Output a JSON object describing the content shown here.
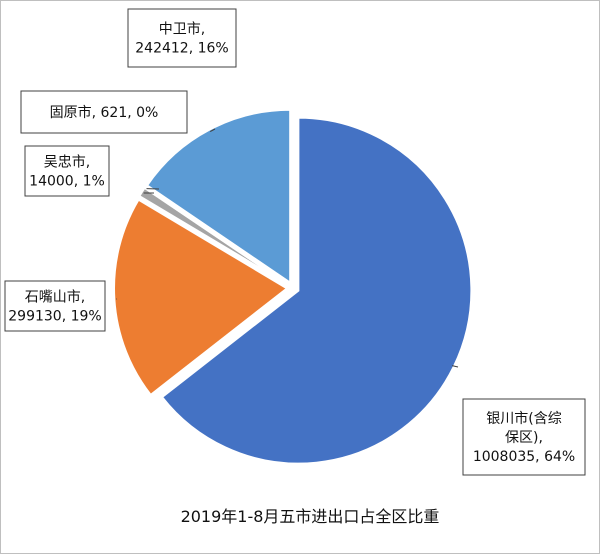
{
  "chart_data": {
    "type": "pie",
    "title": "2019年1-8月五市进出口占全区比重",
    "slices": [
      {
        "name": "银川市(含综保区)",
        "value": 1008035,
        "percent": "64%",
        "color": "#4472C4",
        "label_lines": [
          "银川市(含综",
          "保区),",
          "1008035, 64%"
        ]
      },
      {
        "name": "石嘴山市",
        "value": 299130,
        "percent": "19%",
        "color": "#ED7D31",
        "label_lines": [
          "石嘴山市,",
          "299130, 19%"
        ]
      },
      {
        "name": "吴忠市",
        "value": 14000,
        "percent": "1%",
        "color": "#A5A5A5",
        "label_lines": [
          "吴忠市,",
          "14000, 1%"
        ]
      },
      {
        "name": "固原市",
        "value": 621,
        "percent": "0%",
        "color": "#FFC000",
        "label_lines": [
          "固原市, 621, 0%"
        ]
      },
      {
        "name": "中卫市",
        "value": 242412,
        "percent": "16%",
        "color": "#5B9BD5",
        "label_lines": [
          "中卫市,",
          "242412, 16%"
        ]
      }
    ]
  }
}
